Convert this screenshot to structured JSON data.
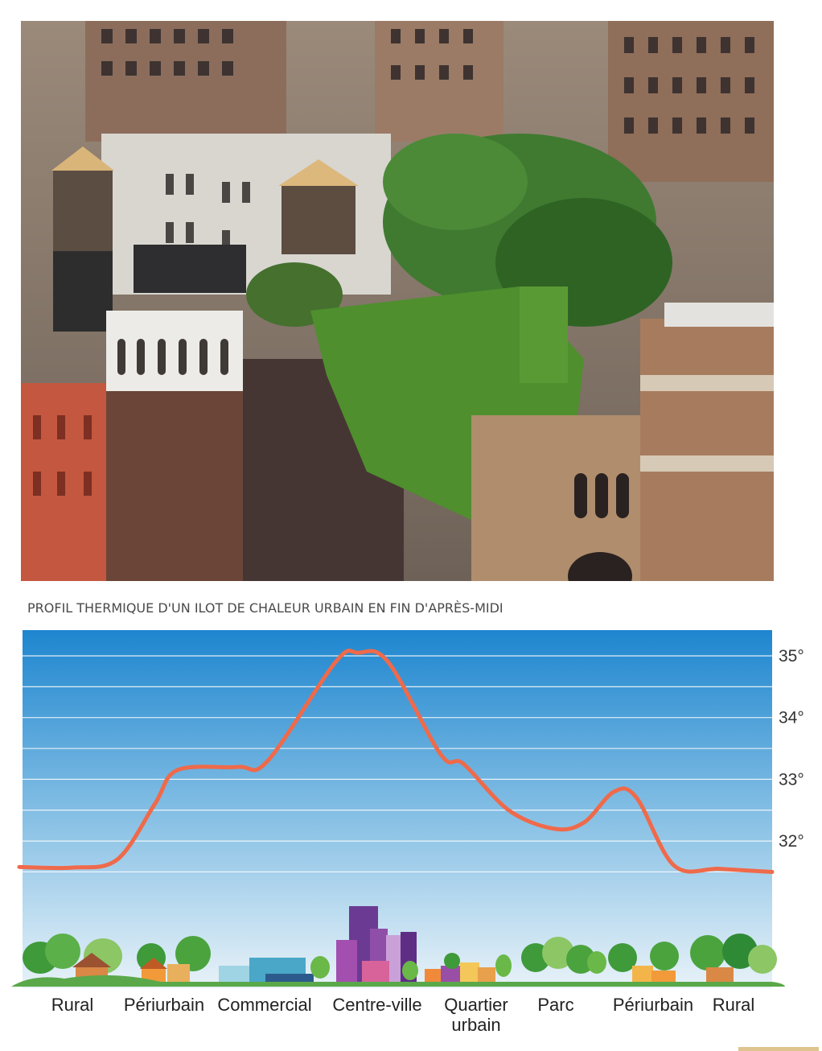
{
  "photo": {
    "subject": "rooftop-garden-city-buildings"
  },
  "chart_title": "PROFIL THERMIQUE D'UN ILOT DE CHALEUR URBAIN EN FIN D'APRÈS-MIDI",
  "chart_data": {
    "type": "line",
    "title": "PROFIL THERMIQUE D'UN ILOT DE CHALEUR URBAIN EN FIN D'APRÈS-MIDI",
    "xlabel": "",
    "ylabel": "",
    "y_ticks": [
      "35°",
      "34°",
      "33°",
      "32°"
    ],
    "y_tick_values": [
      35,
      34,
      33,
      32
    ],
    "ylim": [
      31.5,
      35.1
    ],
    "grid": true,
    "categories": [
      "Rural",
      "Périurbain",
      "Commercial",
      "Centre-ville",
      "Quartier urbain",
      "Parc",
      "Périurbain",
      "Rural"
    ],
    "series": [
      {
        "x": [
          0.0,
          0.07,
          0.13,
          0.18,
          0.21,
          0.29,
          0.33,
          0.42,
          0.45,
          0.49,
          0.56,
          0.59,
          0.65,
          0.71,
          0.75,
          0.79,
          0.82,
          0.87,
          0.93,
          1.0
        ],
        "values": [
          31.58,
          31.57,
          31.7,
          32.6,
          33.15,
          33.2,
          33.3,
          34.9,
          35.05,
          34.9,
          33.4,
          33.25,
          32.5,
          32.2,
          32.3,
          32.8,
          32.7,
          31.6,
          31.55,
          31.5
        ]
      }
    ],
    "colors": {
      "line": "#ef6a4a",
      "sky_top": "#1e86cf",
      "sky_bottom": "#e8f2f8",
      "grid": "#ffffff"
    }
  },
  "zones": [
    {
      "label": "Rural"
    },
    {
      "label": "Périurbain"
    },
    {
      "label": "Commercial"
    },
    {
      "label": "Centre-ville"
    },
    {
      "label": "Quartier\nurbain"
    },
    {
      "label": "Parc"
    },
    {
      "label": "Périurbain"
    },
    {
      "label": "Rural"
    }
  ]
}
